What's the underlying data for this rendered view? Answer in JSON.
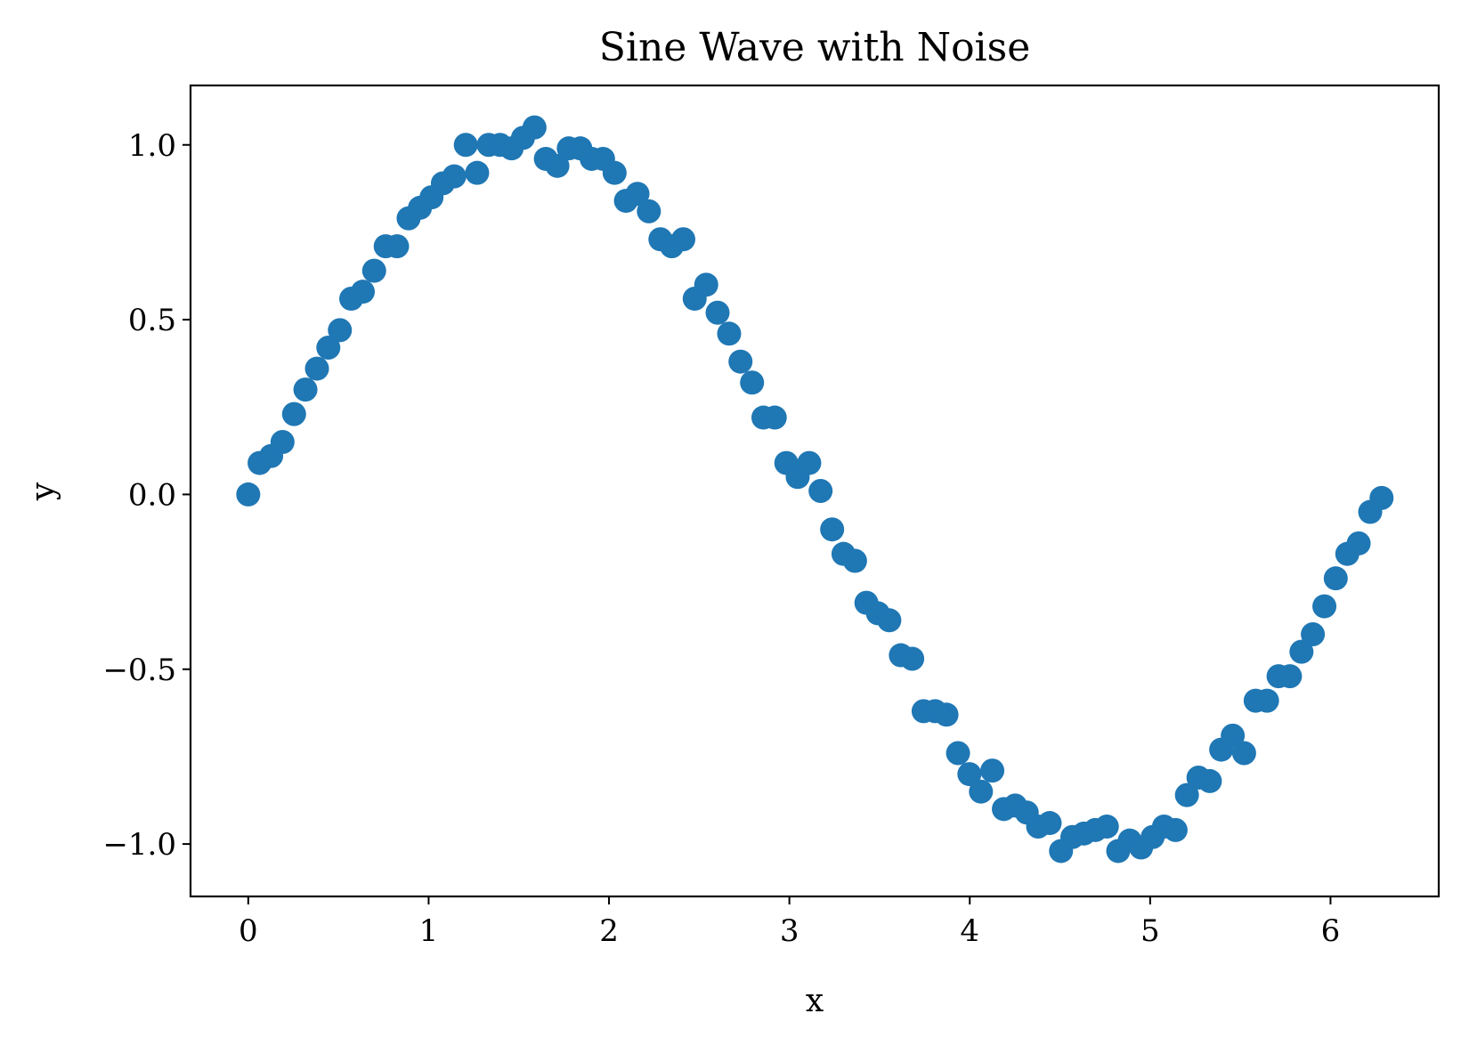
{
  "chart_data": {
    "type": "scatter",
    "title": "Sine Wave with Noise",
    "xlabel": "x",
    "ylabel": "y",
    "xlim": [
      -0.32,
      6.6
    ],
    "ylim": [
      -1.15,
      1.17
    ],
    "xticks": [
      0,
      1,
      2,
      3,
      4,
      5,
      6
    ],
    "xtick_labels": [
      "0",
      "1",
      "2",
      "3",
      "4",
      "5",
      "6"
    ],
    "yticks": [
      -1.0,
      -0.5,
      0.0,
      0.5,
      1.0
    ],
    "ytick_labels": [
      "−1.0",
      "−0.5",
      "0.0",
      "0.5",
      "1.0"
    ],
    "grid": false,
    "legend": "none",
    "marker_color": "#1f77b4",
    "series": [
      {
        "x": [
          0.0,
          0.063,
          0.127,
          0.19,
          0.254,
          0.317,
          0.381,
          0.444,
          0.508,
          0.571,
          0.635,
          0.698,
          0.762,
          0.825,
          0.889,
          0.952,
          1.016,
          1.079,
          1.142,
          1.206,
          1.269,
          1.333,
          1.396,
          1.46,
          1.523,
          1.587,
          1.65,
          1.714,
          1.777,
          1.841,
          1.904,
          1.967,
          2.031,
          2.094,
          2.158,
          2.221,
          2.285,
          2.348,
          2.412,
          2.475,
          2.539,
          2.602,
          2.666,
          2.729,
          2.793,
          2.856,
          2.919,
          2.983,
          3.046,
          3.11,
          3.173,
          3.237,
          3.3,
          3.364,
          3.427,
          3.491,
          3.554,
          3.618,
          3.681,
          3.744,
          3.808,
          3.871,
          3.935,
          3.998,
          4.062,
          4.125,
          4.189,
          4.252,
          4.316,
          4.379,
          4.443,
          4.506,
          4.569,
          4.633,
          4.696,
          4.76,
          4.823,
          4.887,
          4.95,
          5.014,
          5.077,
          5.141,
          5.204,
          5.268,
          5.331,
          5.394,
          5.458,
          5.521,
          5.585,
          5.648,
          5.712,
          5.775,
          5.839,
          5.902,
          5.966,
          6.029,
          6.093,
          6.156,
          6.22,
          6.283
        ],
        "y": [
          0.0,
          0.09,
          0.11,
          0.15,
          0.23,
          0.3,
          0.36,
          0.42,
          0.47,
          0.56,
          0.58,
          0.64,
          0.71,
          0.71,
          0.79,
          0.82,
          0.85,
          0.89,
          0.91,
          1.0,
          0.92,
          1.0,
          1.0,
          0.99,
          1.02,
          1.05,
          0.96,
          0.94,
          0.99,
          0.99,
          0.96,
          0.96,
          0.92,
          0.84,
          0.86,
          0.81,
          0.73,
          0.71,
          0.73,
          0.56,
          0.6,
          0.52,
          0.46,
          0.38,
          0.32,
          0.22,
          0.22,
          0.09,
          0.05,
          0.09,
          0.01,
          -0.1,
          -0.17,
          -0.19,
          -0.31,
          -0.34,
          -0.36,
          -0.46,
          -0.47,
          -0.62,
          -0.62,
          -0.63,
          -0.74,
          -0.8,
          -0.85,
          -0.79,
          -0.9,
          -0.89,
          -0.91,
          -0.95,
          -0.94,
          -1.02,
          -0.98,
          -0.97,
          -0.96,
          -0.95,
          -1.02,
          -0.99,
          -1.01,
          -0.98,
          -0.95,
          -0.96,
          -0.86,
          -0.81,
          -0.82,
          -0.73,
          -0.69,
          -0.74,
          -0.59,
          -0.59,
          -0.52,
          -0.52,
          -0.45,
          -0.4,
          -0.32,
          -0.24,
          -0.17,
          -0.14,
          -0.05,
          -0.01
        ]
      }
    ]
  }
}
